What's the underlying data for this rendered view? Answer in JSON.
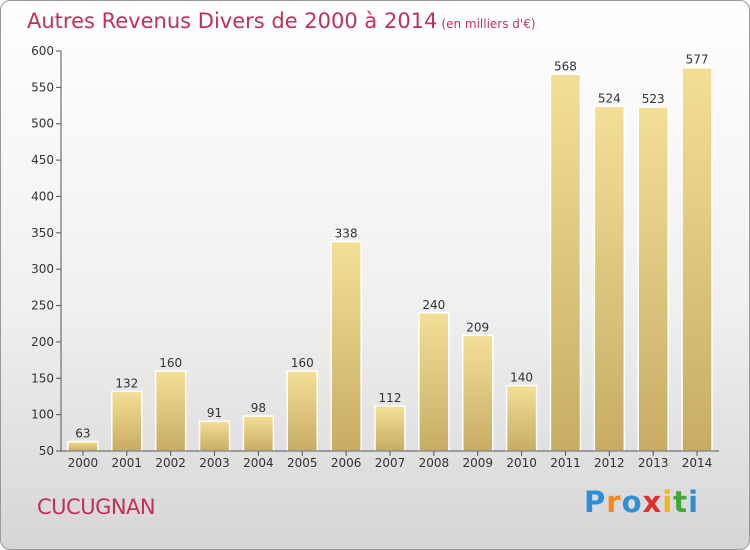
{
  "title": "Autres Revenus Divers de 2000 à 2014",
  "title_unit": "(en milliers d'€)",
  "commune": "CUCUGNAN",
  "brand": "Proxiti",
  "colors": {
    "title": "#c0305a",
    "bar_top": "#f4df96",
    "bar_bottom": "#c8ac64"
  },
  "chart_data": {
    "type": "bar",
    "title": "Autres Revenus Divers de 2000 à 2014",
    "subtitle": "(en milliers d'€)",
    "categories": [
      "2000",
      "2001",
      "2002",
      "2003",
      "2004",
      "2005",
      "2006",
      "2007",
      "2008",
      "2009",
      "2010",
      "2011",
      "2012",
      "2013",
      "2014"
    ],
    "values": [
      63,
      132,
      160,
      91,
      98,
      160,
      338,
      112,
      240,
      209,
      140,
      568,
      524,
      523,
      577
    ],
    "ylim": [
      50,
      600
    ],
    "yticks": [
      50,
      100,
      150,
      200,
      250,
      300,
      350,
      400,
      450,
      500,
      550,
      600
    ],
    "grid": false,
    "data_labels": true
  }
}
